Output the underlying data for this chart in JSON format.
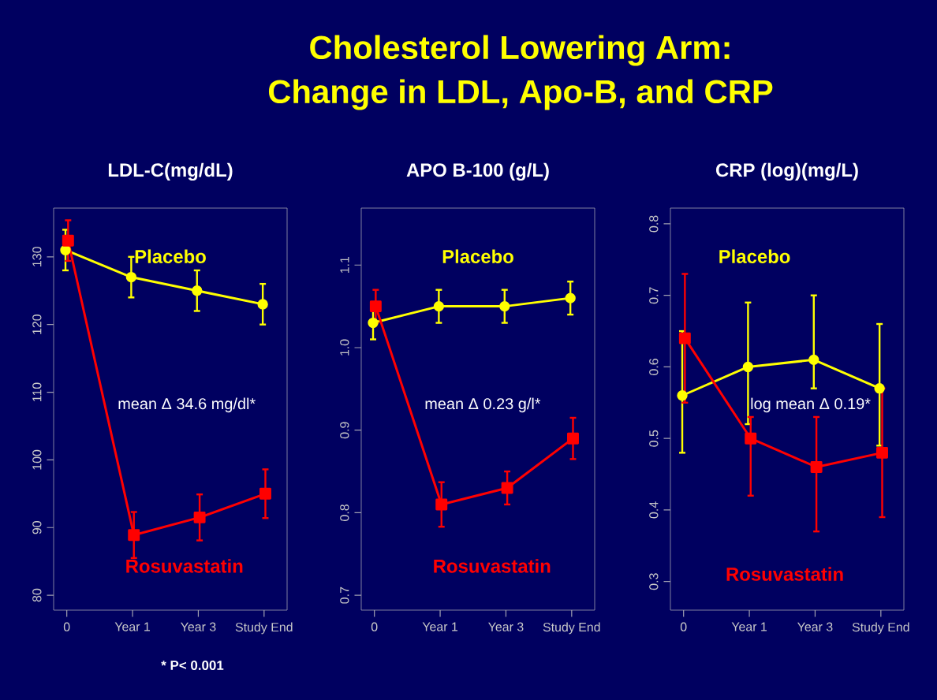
{
  "chart_data": [
    {
      "type": "line",
      "title": "LDL-C(mg/dL)",
      "categories": [
        "0",
        "Year 1",
        "Year 3",
        "Study End"
      ],
      "ylim": [
        77.8,
        137.2
      ],
      "yticks": [
        80,
        90,
        100,
        110,
        120,
        130
      ],
      "series": [
        {
          "name": "Placebo",
          "color": "#ffff00",
          "marker": "circle",
          "values": [
            131,
            127,
            125,
            123
          ],
          "errors": [
            3,
            3,
            3,
            3
          ]
        },
        {
          "name": "Rosuvastatin",
          "color": "#ff0000",
          "marker": "square",
          "values": [
            132.4,
            88.9,
            91.5,
            95
          ],
          "errors": [
            3,
            3.4,
            3.4,
            3.6
          ]
        }
      ],
      "annotations": [
        "mean Δ 34.6 mg/dl*",
        "* P< 0.001",
        "Cholesterol Lowering Arm:",
        "Change in LDL, Apo-B, and CRP"
      ]
    },
    {
      "type": "line",
      "title": "APO B-100 (g/L)",
      "categories": [
        "0",
        "Year 1",
        "Year 3",
        "Study End"
      ],
      "ylim": [
        0.682,
        1.169
      ],
      "yticks": [
        0.7,
        0.8,
        0.9,
        {
          "value": 1.0,
          "label": "1.0"
        },
        1.1
      ],
      "series": [
        {
          "name": "Placebo",
          "color": "#ffff00",
          "marker": "circle",
          "values": [
            1.03,
            1.05,
            1.05,
            1.06
          ],
          "errors": [
            0.02,
            0.02,
            0.02,
            0.02
          ]
        },
        {
          "name": "Rosuvastatin",
          "color": "#ff0000",
          "marker": "square",
          "values": [
            1.05,
            0.81,
            0.83,
            0.89
          ],
          "errors": [
            0.02,
            0.027,
            0.02,
            0.025
          ]
        }
      ],
      "annotations": [
        "mean Δ 0.23 g/l*"
      ]
    },
    {
      "type": "line",
      "title": "CRP (log)(mg/L)",
      "categories": [
        "0",
        "Year 1",
        "Year 3",
        "Study End"
      ],
      "ylim": [
        0.26,
        0.822
      ],
      "yticks": [
        0.3,
        0.4,
        0.5,
        0.6,
        0.7,
        0.8
      ],
      "series": [
        {
          "name": "Placebo",
          "color": "#ffff00",
          "marker": "circle",
          "values": [
            0.56,
            0.6,
            0.61,
            0.57
          ],
          "errors": [
            [
              0.48,
              0.65
            ],
            [
              0.52,
              0.69
            ],
            [
              0.57,
              0.7
            ],
            [
              0.49,
              0.66
            ]
          ]
        },
        {
          "name": "Rosuvastatin",
          "color": "#ff0000",
          "marker": "square",
          "values": [
            0.64,
            0.5,
            0.46,
            0.48
          ],
          "errors": [
            [
              0.55,
              0.73
            ],
            [
              0.42,
              0.53
            ],
            [
              0.37,
              0.53
            ],
            [
              0.39,
              0.57
            ]
          ]
        }
      ],
      "annotations": [
        "log mean Δ 0.19*"
      ]
    }
  ]
}
